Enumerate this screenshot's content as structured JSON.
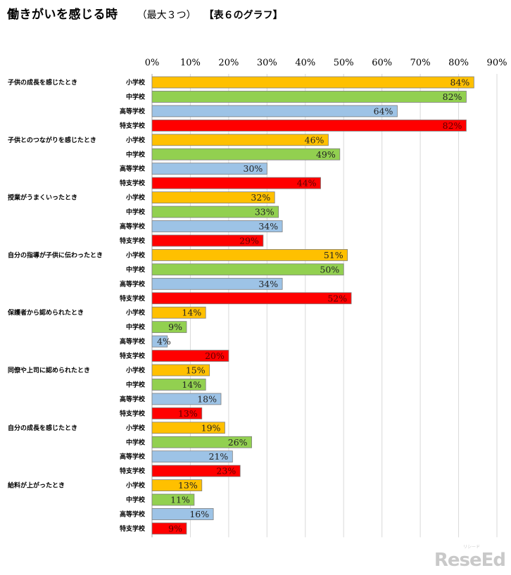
{
  "header": {
    "title": "働きがいを感じる時",
    "subtitle": "（最大３つ）",
    "table_ref": "【表６のグラフ】"
  },
  "watermark": {
    "logo": "ReseEd",
    "logo_small": "リシード"
  },
  "colors": {
    "小学校": "#FFC000",
    "中学校": "#92D050",
    "高等学校": "#9DC3E6",
    "特支学校": "#FF0000",
    "gridline": "#D9D9D9",
    "border": "#7F7F7F"
  },
  "chart_data": {
    "type": "bar",
    "orientation": "horizontal",
    "title": "働きがいを感じる時",
    "xlim": [
      0,
      90
    ],
    "xticks": [
      "0%",
      "10%",
      "20%",
      "30%",
      "40%",
      "50%",
      "60%",
      "70%",
      "80%",
      "90%"
    ],
    "xtick_values": [
      0,
      10,
      20,
      30,
      40,
      50,
      60,
      70,
      80,
      90
    ],
    "schools": [
      "小学校",
      "中学校",
      "高等学校",
      "特支学校"
    ],
    "categories": [
      {
        "label": "子供の成長を感じたとき",
        "values": [
          84,
          82,
          64,
          82
        ]
      },
      {
        "label": "子供とのつながりを感じたとき",
        "values": [
          46,
          49,
          30,
          44
        ]
      },
      {
        "label": "授業がうまくいったとき",
        "values": [
          32,
          33,
          34,
          29
        ]
      },
      {
        "label": "自分の指導が子供に伝わったとき",
        "values": [
          51,
          50,
          34,
          52
        ]
      },
      {
        "label": "保護者から認められたとき",
        "values": [
          14,
          9,
          4,
          20
        ]
      },
      {
        "label": "同僚や上司に認められたとき",
        "values": [
          15,
          14,
          18,
          13
        ]
      },
      {
        "label": "自分の成長を感じたとき",
        "values": [
          19,
          26,
          21,
          23
        ]
      },
      {
        "label": "給料が上がったとき",
        "values": [
          13,
          11,
          16,
          9
        ]
      }
    ],
    "unit": "%"
  }
}
